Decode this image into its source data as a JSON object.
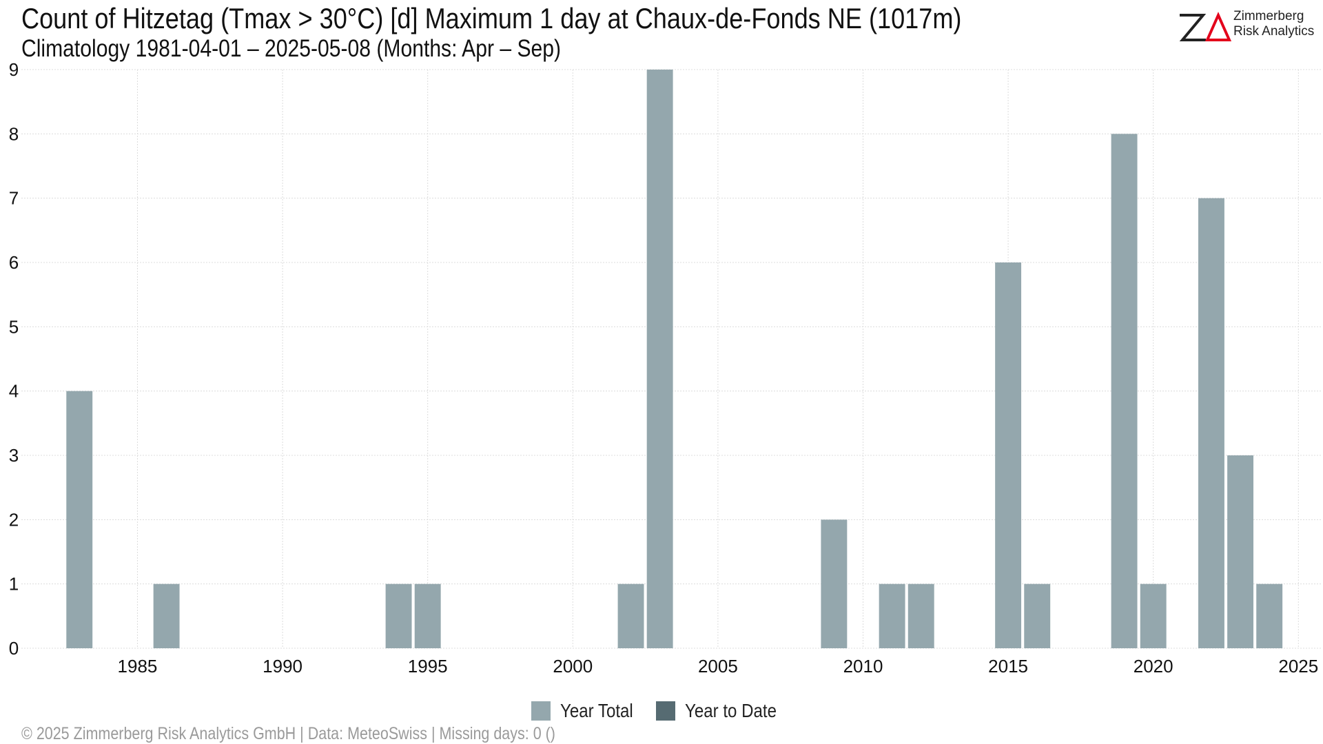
{
  "header": {
    "title": "Count of Hitzetag (Tmax > 30°C) [d] Maximum 1 day at Chaux-de-Fonds  NE (1017m)",
    "subtitle": "Climatology 1981-04-01 – 2025-05-08 (Months: Apr – Sep)"
  },
  "logo": {
    "line1": "Zimmerberg",
    "line2": "Risk Analytics",
    "mark_color": "#222222",
    "accent_color": "#e3001b"
  },
  "legend": {
    "items": [
      {
        "label": "Year Total",
        "color": "#94a7ad"
      },
      {
        "label": "Year to Date",
        "color": "#566b72"
      }
    ]
  },
  "footer": {
    "text": "©  2025 Zimmerberg Risk Analytics GmbH | Data: MeteoSwiss | Missing days: 0 ()"
  },
  "chart_data": {
    "type": "bar",
    "title": "Count of Hitzetag (Tmax > 30°C) [d] Maximum 1 day at Chaux-de-Fonds  NE (1017m)",
    "subtitle": "Climatology 1981-04-01 – 2025-05-08 (Months: Apr – Sep)",
    "xlabel": "",
    "ylabel": "",
    "xlim": [
      1981,
      2025.8
    ],
    "ylim": [
      0,
      9
    ],
    "x_ticks": [
      1985,
      1990,
      1995,
      2000,
      2005,
      2010,
      2015,
      2020,
      2025
    ],
    "y_ticks": [
      0,
      1,
      2,
      3,
      4,
      5,
      6,
      7,
      8,
      9
    ],
    "grid": true,
    "legend_position": "bottom",
    "series": [
      {
        "name": "Year Total",
        "color": "#94a7ad",
        "x": [
          1983,
          1986,
          1994,
          1995,
          2002,
          2003,
          2009,
          2011,
          2012,
          2015,
          2016,
          2019,
          2020,
          2022,
          2023,
          2024
        ],
        "values": [
          4,
          1,
          1,
          1,
          1,
          9,
          2,
          1,
          1,
          6,
          1,
          8,
          1,
          7,
          3,
          1
        ]
      },
      {
        "name": "Year to Date",
        "color": "#566b72",
        "x": [],
        "values": []
      }
    ]
  }
}
